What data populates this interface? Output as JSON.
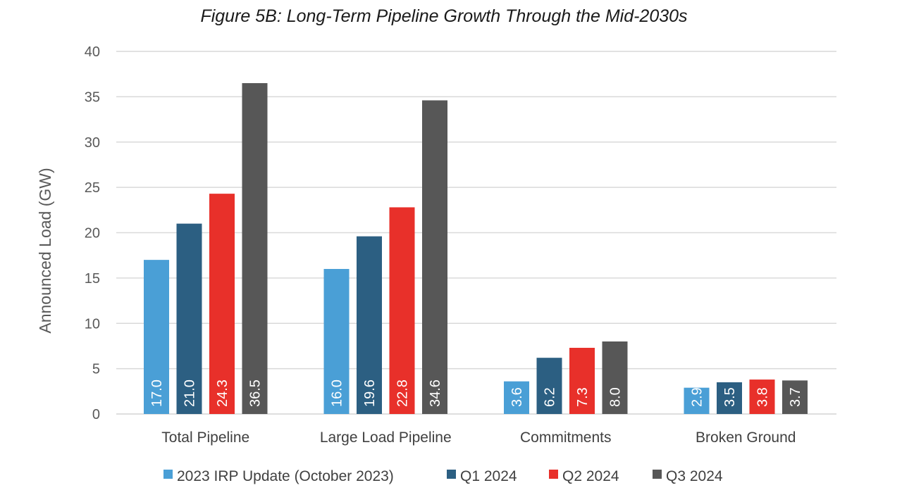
{
  "chart_data": {
    "type": "bar",
    "title": "Figure 5B: Long-Term Pipeline Growth Through the Mid-2030s",
    "xlabel": "",
    "ylabel": "Announced Load (GW)",
    "ylim": [
      0,
      40
    ],
    "yticks": [
      0,
      5,
      10,
      15,
      20,
      25,
      30,
      35,
      40
    ],
    "grid": true,
    "legend_position": "bottom",
    "categories": [
      "Total Pipeline",
      "Large Load Pipeline",
      "Commitments",
      "Broken Ground"
    ],
    "series": [
      {
        "name": "2023 IRP Update (October 2023)",
        "color": "#4a9fd6",
        "values": [
          17.0,
          16.0,
          3.6,
          2.9
        ]
      },
      {
        "name": "Q1 2024",
        "color": "#2c5f82",
        "values": [
          21.0,
          19.6,
          6.2,
          3.5
        ]
      },
      {
        "name": "Q2 2024",
        "color": "#e8302a",
        "values": [
          24.3,
          22.8,
          7.3,
          3.8
        ]
      },
      {
        "name": "Q3 2024",
        "color": "#575757",
        "values": [
          36.5,
          34.6,
          8.0,
          3.7
        ]
      }
    ]
  }
}
